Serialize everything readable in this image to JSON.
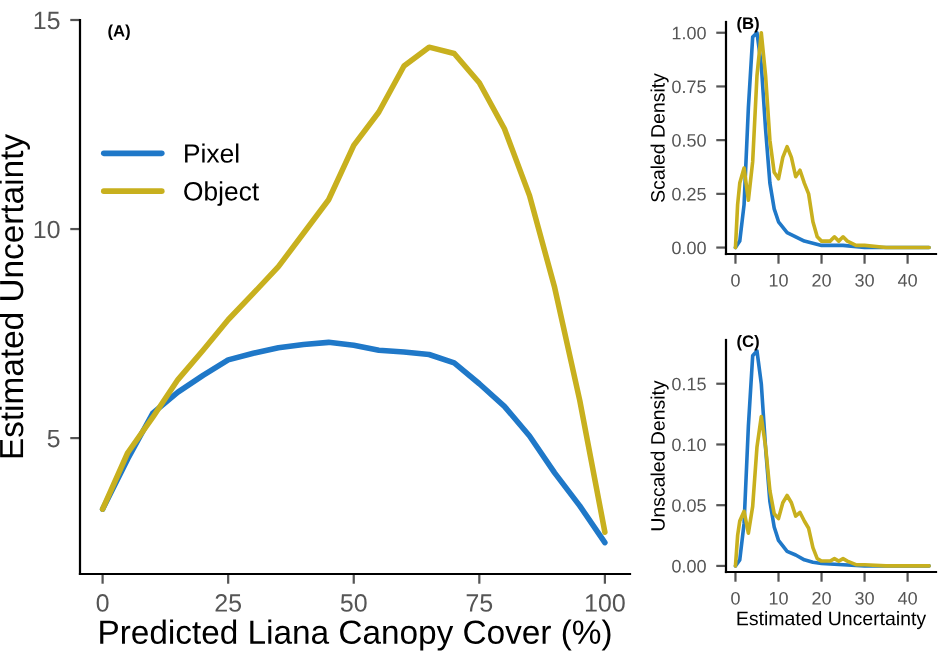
{
  "chart_data": [
    {
      "type": "line",
      "title": "(A)",
      "xlabel": "Predicted Liana Canopy Cover (%)",
      "ylabel": "Estimated Uncertainty",
      "xlim": [
        -4.5,
        105
      ],
      "ylim": [
        1.75,
        15
      ],
      "xticks": [
        0,
        25,
        50,
        75,
        100
      ],
      "yticks": [
        5,
        10,
        15
      ],
      "grid": false,
      "legend": "top left",
      "marker": "none",
      "line_style": "solid",
      "x": [
        0,
        5,
        10,
        15,
        20,
        25,
        30,
        35,
        40,
        45,
        50,
        55,
        60,
        65,
        70,
        75,
        80,
        85,
        90,
        95,
        100
      ],
      "series": [
        {
          "name": "Pixel",
          "color": "#1f78c8",
          "values": [
            3.3,
            4.5,
            5.6,
            6.1,
            6.5,
            6.87,
            7.03,
            7.16,
            7.24,
            7.29,
            7.22,
            7.1,
            7.06,
            7.0,
            6.8,
            6.3,
            5.76,
            5.05,
            4.17,
            3.38,
            2.5
          ]
        },
        {
          "name": "Object",
          "color": "#c8b01e",
          "values": [
            3.3,
            4.65,
            5.5,
            6.4,
            7.1,
            7.83,
            8.46,
            9.1,
            9.9,
            10.7,
            12.0,
            12.8,
            13.9,
            14.35,
            14.2,
            13.5,
            12.4,
            10.8,
            8.6,
            5.9,
            2.75
          ]
        }
      ]
    },
    {
      "type": "line",
      "title": "(B)",
      "ylabel": "Scaled Density",
      "xlim": [
        -2.2,
        46.6
      ],
      "ylim": [
        -0.03,
        1.05
      ],
      "xticks": [
        0,
        10,
        20,
        30,
        40
      ],
      "yticks": [
        {
          "value": 0,
          "label": "0.00"
        },
        {
          "value": 0.25,
          "label": "0.25"
        },
        {
          "value": 0.5,
          "label": "0.50"
        },
        {
          "value": 0.75,
          "label": "0.75"
        },
        {
          "value": 1,
          "label": "1.00"
        }
      ],
      "grid": false,
      "marker": "none",
      "line_style": "solid",
      "series": [
        {
          "color": "#1f78c8",
          "x": [
            0,
            1,
            2,
            3,
            4,
            5,
            6,
            7,
            8,
            9,
            10,
            12,
            14,
            16,
            18,
            20,
            25,
            30,
            45
          ],
          "values": [
            0,
            0.03,
            0.2,
            0.65,
            0.98,
            1.0,
            0.85,
            0.55,
            0.3,
            0.18,
            0.12,
            0.07,
            0.05,
            0.03,
            0.02,
            0.01,
            0.01,
            0,
            0
          ]
        },
        {
          "color": "#c8b01e",
          "x": [
            0,
            0.5,
            1,
            2,
            3,
            4,
            5,
            6,
            7,
            8,
            9,
            10,
            11,
            12,
            13,
            14,
            15,
            16,
            17,
            18,
            19,
            20,
            22,
            23,
            24,
            25,
            26,
            28,
            30,
            35,
            45
          ],
          "values": [
            0,
            0.2,
            0.3,
            0.37,
            0.22,
            0.4,
            0.8,
            1.0,
            0.8,
            0.5,
            0.35,
            0.32,
            0.42,
            0.47,
            0.42,
            0.33,
            0.36,
            0.3,
            0.25,
            0.12,
            0.05,
            0.03,
            0.03,
            0.05,
            0.03,
            0.05,
            0.03,
            0.01,
            0.01,
            0,
            0
          ]
        }
      ]
    },
    {
      "type": "line",
      "title": "(C)",
      "xlabel": "Estimated Uncertainty",
      "ylabel": "Unscaled Density",
      "xlim": [
        -2.2,
        46.6
      ],
      "ylim": [
        -0.005,
        0.186
      ],
      "xticks": [
        0,
        10,
        20,
        30,
        40
      ],
      "yticks": [
        {
          "value": 0,
          "label": "0.00"
        },
        {
          "value": 0.05,
          "label": "0.05"
        },
        {
          "value": 0.1,
          "label": "0.10"
        },
        {
          "value": 0.15,
          "label": "0.15"
        }
      ],
      "grid": false,
      "marker": "none",
      "line_style": "solid",
      "series": [
        {
          "color": "#1f78c8",
          "x": [
            0,
            1,
            2,
            3,
            4,
            5,
            6,
            7,
            8,
            9,
            10,
            12,
            14,
            16,
            18,
            20,
            25,
            30,
            45
          ],
          "values": [
            0,
            0.005,
            0.035,
            0.115,
            0.173,
            0.177,
            0.15,
            0.097,
            0.053,
            0.032,
            0.021,
            0.012,
            0.009,
            0.005,
            0.003,
            0.002,
            0.001,
            0,
            0
          ]
        },
        {
          "color": "#c8b01e",
          "x": [
            0,
            0.5,
            1,
            2,
            3,
            4,
            5,
            6,
            7,
            8,
            9,
            10,
            11,
            12,
            13,
            14,
            15,
            16,
            17,
            18,
            19,
            20,
            22,
            23,
            24,
            25,
            26,
            28,
            30,
            35,
            45
          ],
          "values": [
            0,
            0.025,
            0.037,
            0.045,
            0.027,
            0.049,
            0.098,
            0.123,
            0.098,
            0.062,
            0.043,
            0.039,
            0.052,
            0.058,
            0.052,
            0.041,
            0.044,
            0.037,
            0.031,
            0.015,
            0.006,
            0.004,
            0.004,
            0.006,
            0.004,
            0.006,
            0.004,
            0.001,
            0.001,
            0,
            0
          ]
        }
      ]
    }
  ]
}
